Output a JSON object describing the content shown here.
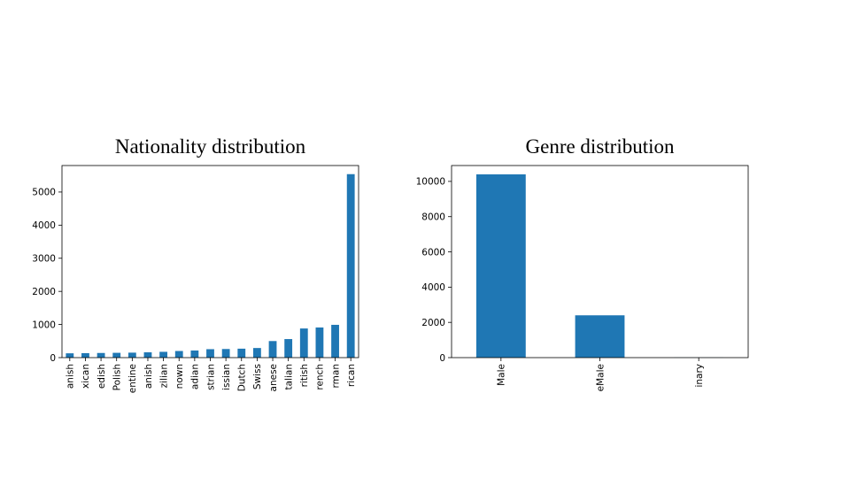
{
  "chart_data": [
    {
      "type": "bar",
      "title": "Nationality distribution",
      "xlabel": "",
      "ylabel": "",
      "ylim": [
        0,
        5800
      ],
      "yticks": [
        0,
        1000,
        2000,
        3000,
        4000,
        5000
      ],
      "categories": [
        "anish",
        "xican",
        "edish",
        "Polish",
        "entine",
        "anish",
        "zilian",
        "nown",
        "adian",
        "strian",
        "issian",
        "Dutch",
        "Swiss",
        "anese",
        "talian",
        "ritish",
        "rench",
        "rman",
        "rican"
      ],
      "values": [
        130,
        135,
        140,
        145,
        150,
        160,
        175,
        200,
        215,
        255,
        260,
        270,
        290,
        500,
        560,
        880,
        910,
        990,
        5540
      ],
      "bar_color": "#1f77b4",
      "grid": false
    },
    {
      "type": "bar",
      "title": "Genre distribution",
      "xlabel": "",
      "ylabel": "",
      "ylim": [
        0,
        10900
      ],
      "yticks": [
        0,
        2000,
        4000,
        6000,
        8000,
        10000
      ],
      "categories": [
        "Male",
        "eMale",
        "inary"
      ],
      "values": [
        10400,
        2400,
        5
      ],
      "bar_color": "#1f77b4",
      "grid": false
    }
  ]
}
